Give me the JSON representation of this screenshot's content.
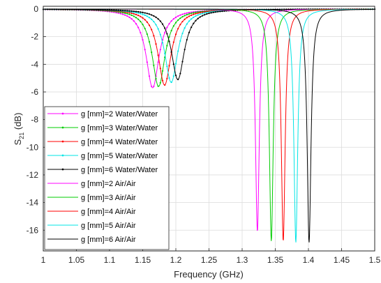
{
  "chart_data": {
    "type": "line",
    "xlabel": "Frequency (GHz)",
    "ylabel_main": "S",
    "ylabel_sub": "21",
    "ylabel_unit": " (dB)",
    "xlim": [
      1.0,
      1.5
    ],
    "ylim": [
      -17.5,
      0.2
    ],
    "xticks": [
      1,
      1.05,
      1.1,
      1.15,
      1.2,
      1.25,
      1.3,
      1.35,
      1.4,
      1.45,
      1.5
    ],
    "xtick_labels": [
      "1",
      "1.05",
      "1.1",
      "1.15",
      "1.2",
      "1.25",
      "1.3",
      "1.35",
      "1.4",
      "1.45",
      "1.5"
    ],
    "yticks": [
      0,
      -2,
      -4,
      -6,
      -8,
      -10,
      -12,
      -14,
      -16
    ],
    "ytick_labels": [
      "0",
      "-2",
      "-4",
      "-6",
      "-8",
      "-10",
      "-12",
      "-14",
      "-16"
    ],
    "grid": true,
    "legend_position": "lower-left",
    "series": [
      {
        "name": "g [mm]=2 Water/Water",
        "color": "#ff00ff",
        "marker": true,
        "resonance_ghz": 1.165,
        "min_db": -5.7,
        "width_ghz": 0.012
      },
      {
        "name": "g [mm]=3 Water/Water",
        "color": "#00cc00",
        "marker": true,
        "resonance_ghz": 1.174,
        "min_db": -5.6,
        "width_ghz": 0.012
      },
      {
        "name": "g [mm]=4 Water/Water",
        "color": "#ff0000",
        "marker": true,
        "resonance_ghz": 1.183,
        "min_db": -5.5,
        "width_ghz": 0.012
      },
      {
        "name": "g [mm]=5 Water/Water",
        "color": "#00e5e5",
        "marker": true,
        "resonance_ghz": 1.193,
        "min_db": -5.3,
        "width_ghz": 0.012
      },
      {
        "name": "g [mm]=6 Water/Water",
        "color": "#000000",
        "marker": true,
        "resonance_ghz": 1.203,
        "min_db": -5.1,
        "width_ghz": 0.012
      },
      {
        "name": "g [mm]=2 Air/Air",
        "color": "#ff00ff",
        "marker": false,
        "resonance_ghz": 1.323,
        "min_db": -16.1,
        "width_ghz": 0.0035
      },
      {
        "name": "g [mm]=3 Air/Air",
        "color": "#00cc00",
        "marker": false,
        "resonance_ghz": 1.344,
        "min_db": -16.8,
        "width_ghz": 0.0035
      },
      {
        "name": "g [mm]=4 Air/Air",
        "color": "#ff0000",
        "marker": false,
        "resonance_ghz": 1.362,
        "min_db": -16.8,
        "width_ghz": 0.0035
      },
      {
        "name": "g [mm]=5 Air/Air",
        "color": "#00e5e5",
        "marker": false,
        "resonance_ghz": 1.381,
        "min_db": -16.9,
        "width_ghz": 0.0035
      },
      {
        "name": "g [mm]=6 Air/Air",
        "color": "#000000",
        "marker": false,
        "resonance_ghz": 1.401,
        "min_db": -16.9,
        "width_ghz": 0.0035
      }
    ]
  }
}
